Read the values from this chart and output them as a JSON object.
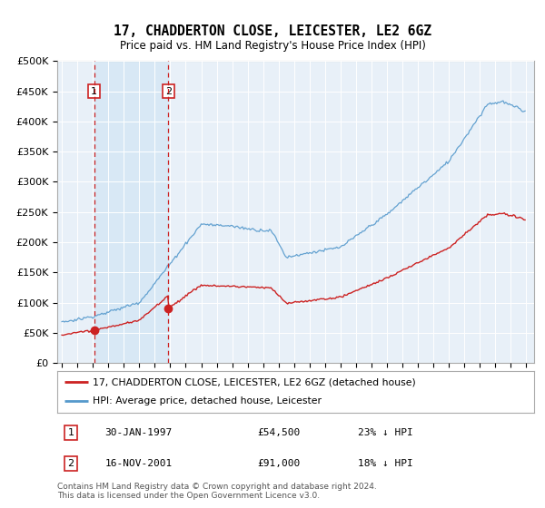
{
  "title": "17, CHADDERTON CLOSE, LEICESTER, LE2 6GZ",
  "subtitle": "Price paid vs. HM Land Registry's House Price Index (HPI)",
  "ylim": [
    0,
    500000
  ],
  "yticks": [
    0,
    50000,
    100000,
    150000,
    200000,
    250000,
    300000,
    350000,
    400000,
    450000,
    500000
  ],
  "ytick_labels": [
    "£0",
    "£50K",
    "£100K",
    "£150K",
    "£200K",
    "£250K",
    "£300K",
    "£350K",
    "£400K",
    "£450K",
    "£500K"
  ],
  "xlim_left": 1994.7,
  "xlim_right": 2025.5,
  "background_color": "#ddeeff",
  "plot_bg_color": "#e8f0f8",
  "shaded_region_color": "#d8e8f5",
  "legend_label_hpi": "HPI: Average price, detached house, Leicester",
  "legend_label_property": "17, CHADDERTON CLOSE, LEICESTER, LE2 6GZ (detached house)",
  "sale1_date": "30-JAN-1997",
  "sale1_price": 54500,
  "sale1_hpi_text": "23% ↓ HPI",
  "sale1_year": 1997.08,
  "sale2_date": "16-NOV-2001",
  "sale2_price": 91000,
  "sale2_hpi_text": "18% ↓ HPI",
  "sale2_year": 2001.88,
  "footer": "Contains HM Land Registry data © Crown copyright and database right 2024.\nThis data is licensed under the Open Government Licence v3.0.",
  "hpi_color": "#5599cc",
  "property_color": "#cc2222",
  "vline_color": "#cc2222",
  "marker_color": "#cc2222",
  "sale1_price_label": "£54,500",
  "sale2_price_label": "£91,000"
}
